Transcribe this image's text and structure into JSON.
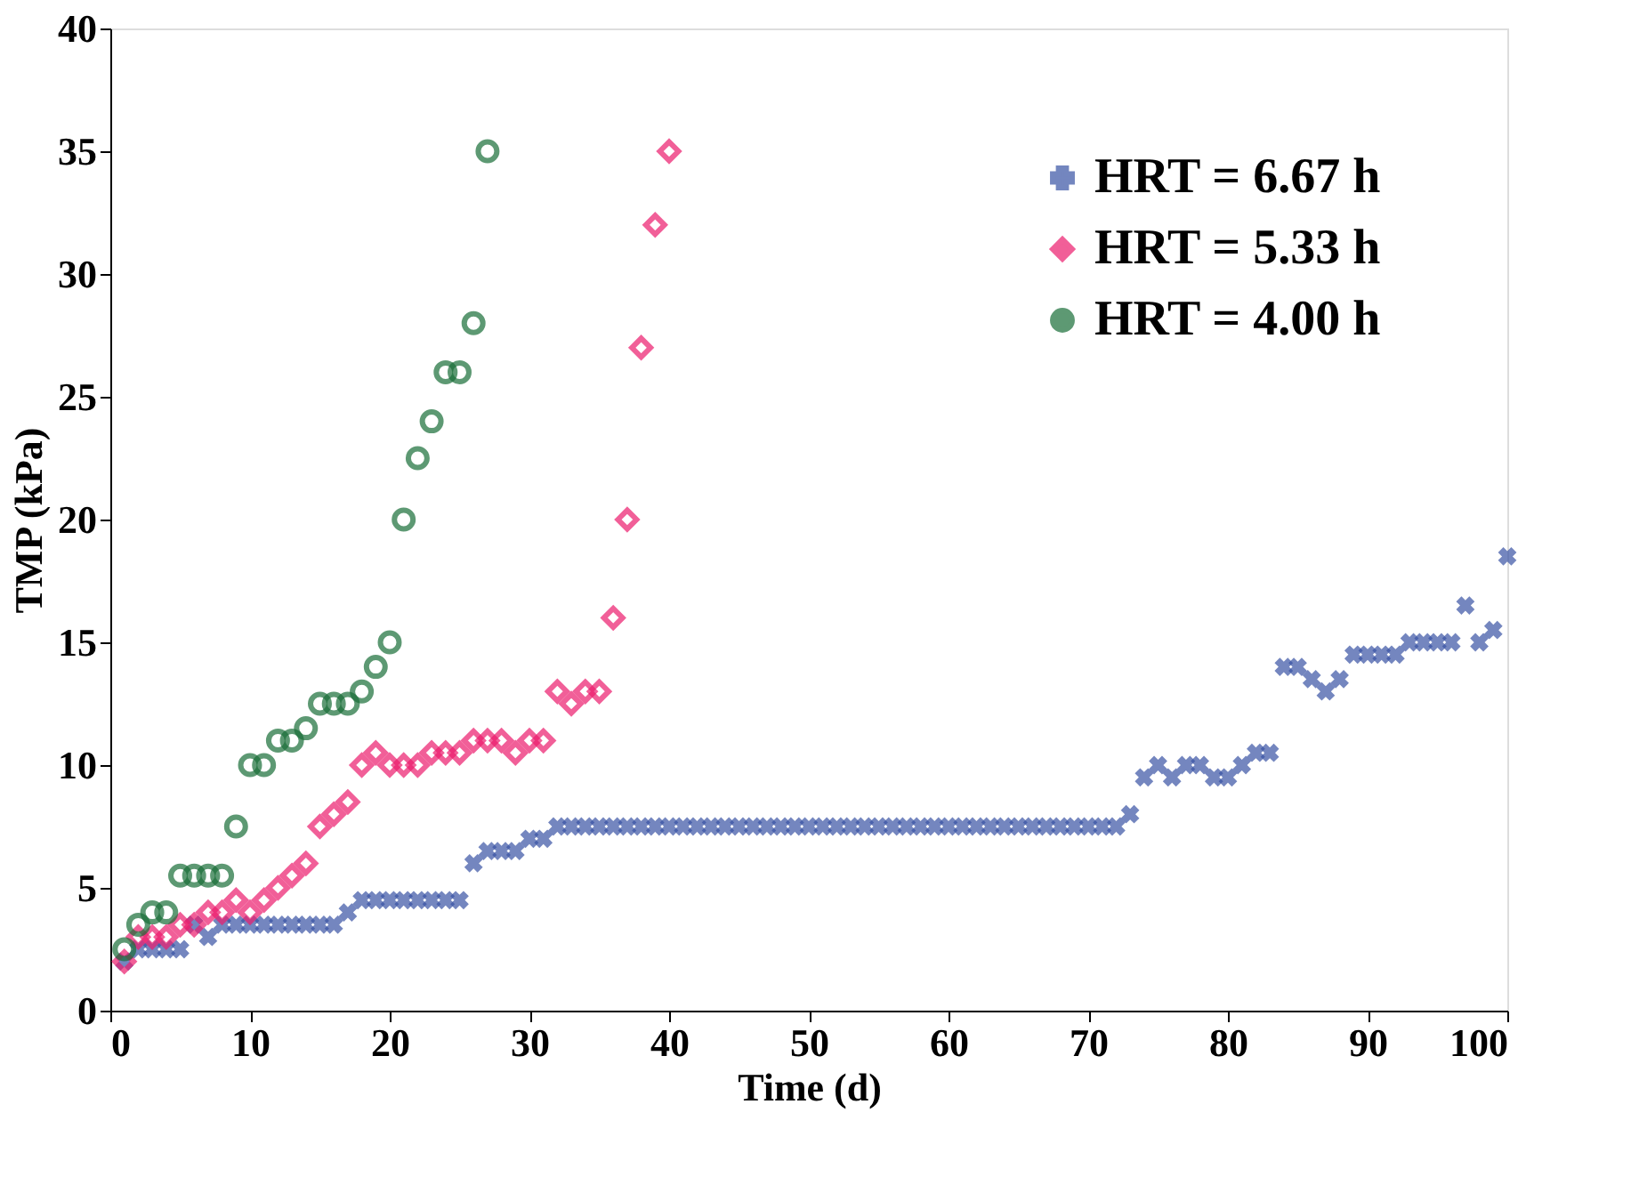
{
  "chart_data": {
    "type": "scatter",
    "xlabel": "Time (d)",
    "ylabel": "TMP (kPa)",
    "xlim": [
      0,
      100
    ],
    "ylim": [
      0,
      40
    ],
    "xticks": [
      0,
      10,
      20,
      30,
      40,
      50,
      60,
      70,
      80,
      90,
      100
    ],
    "yticks": [
      0,
      5,
      10,
      15,
      20,
      25,
      30,
      35,
      40
    ],
    "grid": false,
    "legend": "top right",
    "series": [
      {
        "name": "HRT = 6.67 h",
        "color": "#3953a4",
        "marker": "cross",
        "x": [
          1,
          2,
          3,
          4,
          5,
          6,
          7,
          8,
          9,
          10,
          11,
          12,
          13,
          14,
          15,
          16,
          17,
          18,
          19,
          20,
          21,
          22,
          23,
          24,
          25,
          26,
          27,
          28,
          29,
          30,
          31,
          32,
          33,
          34,
          35,
          36,
          37,
          38,
          39,
          40,
          41,
          42,
          43,
          44,
          45,
          46,
          47,
          48,
          49,
          50,
          51,
          52,
          53,
          54,
          55,
          56,
          57,
          58,
          59,
          60,
          61,
          62,
          63,
          64,
          65,
          66,
          67,
          68,
          69,
          70,
          71,
          72,
          73,
          74,
          75,
          76,
          77,
          78,
          79,
          80,
          81,
          82,
          83,
          84,
          85,
          86,
          87,
          88,
          89,
          90,
          91,
          92,
          93,
          94,
          95,
          96,
          97,
          98,
          99,
          100
        ],
        "values": [
          2,
          2.5,
          2.5,
          2.5,
          2.5,
          3.5,
          3,
          3.5,
          3.5,
          3.5,
          3.5,
          3.5,
          3.5,
          3.5,
          3.5,
          3.5,
          4,
          4.5,
          4.5,
          4.5,
          4.5,
          4.5,
          4.5,
          4.5,
          4.5,
          6,
          6.5,
          6.5,
          6.5,
          7,
          7,
          7.5,
          7.5,
          7.5,
          7.5,
          7.5,
          7.5,
          7.5,
          7.5,
          7.5,
          7.5,
          7.5,
          7.5,
          7.5,
          7.5,
          7.5,
          7.5,
          7.5,
          7.5,
          7.5,
          7.5,
          7.5,
          7.5,
          7.5,
          7.5,
          7.5,
          7.5,
          7.5,
          7.5,
          7.5,
          7.5,
          7.5,
          7.5,
          7.5,
          7.5,
          7.5,
          7.5,
          7.5,
          7.5,
          7.5,
          7.5,
          7.5,
          8,
          9.5,
          10,
          9.5,
          10,
          10,
          9.5,
          9.5,
          10,
          10.5,
          10.5,
          14,
          14,
          13.5,
          13,
          13.5,
          14.5,
          14.5,
          14.5,
          14.5,
          15,
          15,
          15,
          15,
          16.5,
          15,
          15.5,
          18.5
        ]
      },
      {
        "name": "HRT = 5.33 h",
        "color": "#ec1c6d",
        "marker": "diamond",
        "x": [
          1,
          2,
          3,
          4,
          5,
          6,
          7,
          8,
          9,
          10,
          11,
          12,
          13,
          14,
          15,
          16,
          17,
          18,
          19,
          20,
          21,
          22,
          23,
          24,
          25,
          26,
          27,
          28,
          29,
          30,
          31,
          32,
          33,
          34,
          35,
          36,
          37,
          38,
          39,
          40
        ],
        "values": [
          2,
          3,
          3,
          3,
          3.5,
          3.5,
          4,
          4,
          4.5,
          4,
          4.5,
          5,
          5.5,
          6,
          7.5,
          8,
          8.5,
          10,
          10.5,
          10,
          10,
          10,
          10.5,
          10.5,
          10.5,
          11,
          11,
          11,
          10.5,
          11,
          11,
          13,
          12.5,
          13,
          13,
          16,
          20,
          27,
          32,
          35
        ]
      },
      {
        "name": "HRT = 4.00 h",
        "color": "#1a6e38",
        "marker": "circle",
        "x": [
          1,
          2,
          3,
          4,
          5,
          6,
          7,
          8,
          9,
          10,
          11,
          12,
          13,
          14,
          15,
          16,
          17,
          18,
          19,
          20,
          21,
          22,
          23,
          24,
          25,
          26,
          27
        ],
        "values": [
          2.5,
          3.5,
          4,
          4,
          5.5,
          5.5,
          5.5,
          5.5,
          7.5,
          10,
          10,
          11,
          11,
          11.5,
          12.5,
          12.5,
          12.5,
          13,
          14,
          15,
          20,
          22.5,
          24,
          26,
          26,
          28,
          35
        ]
      }
    ]
  }
}
